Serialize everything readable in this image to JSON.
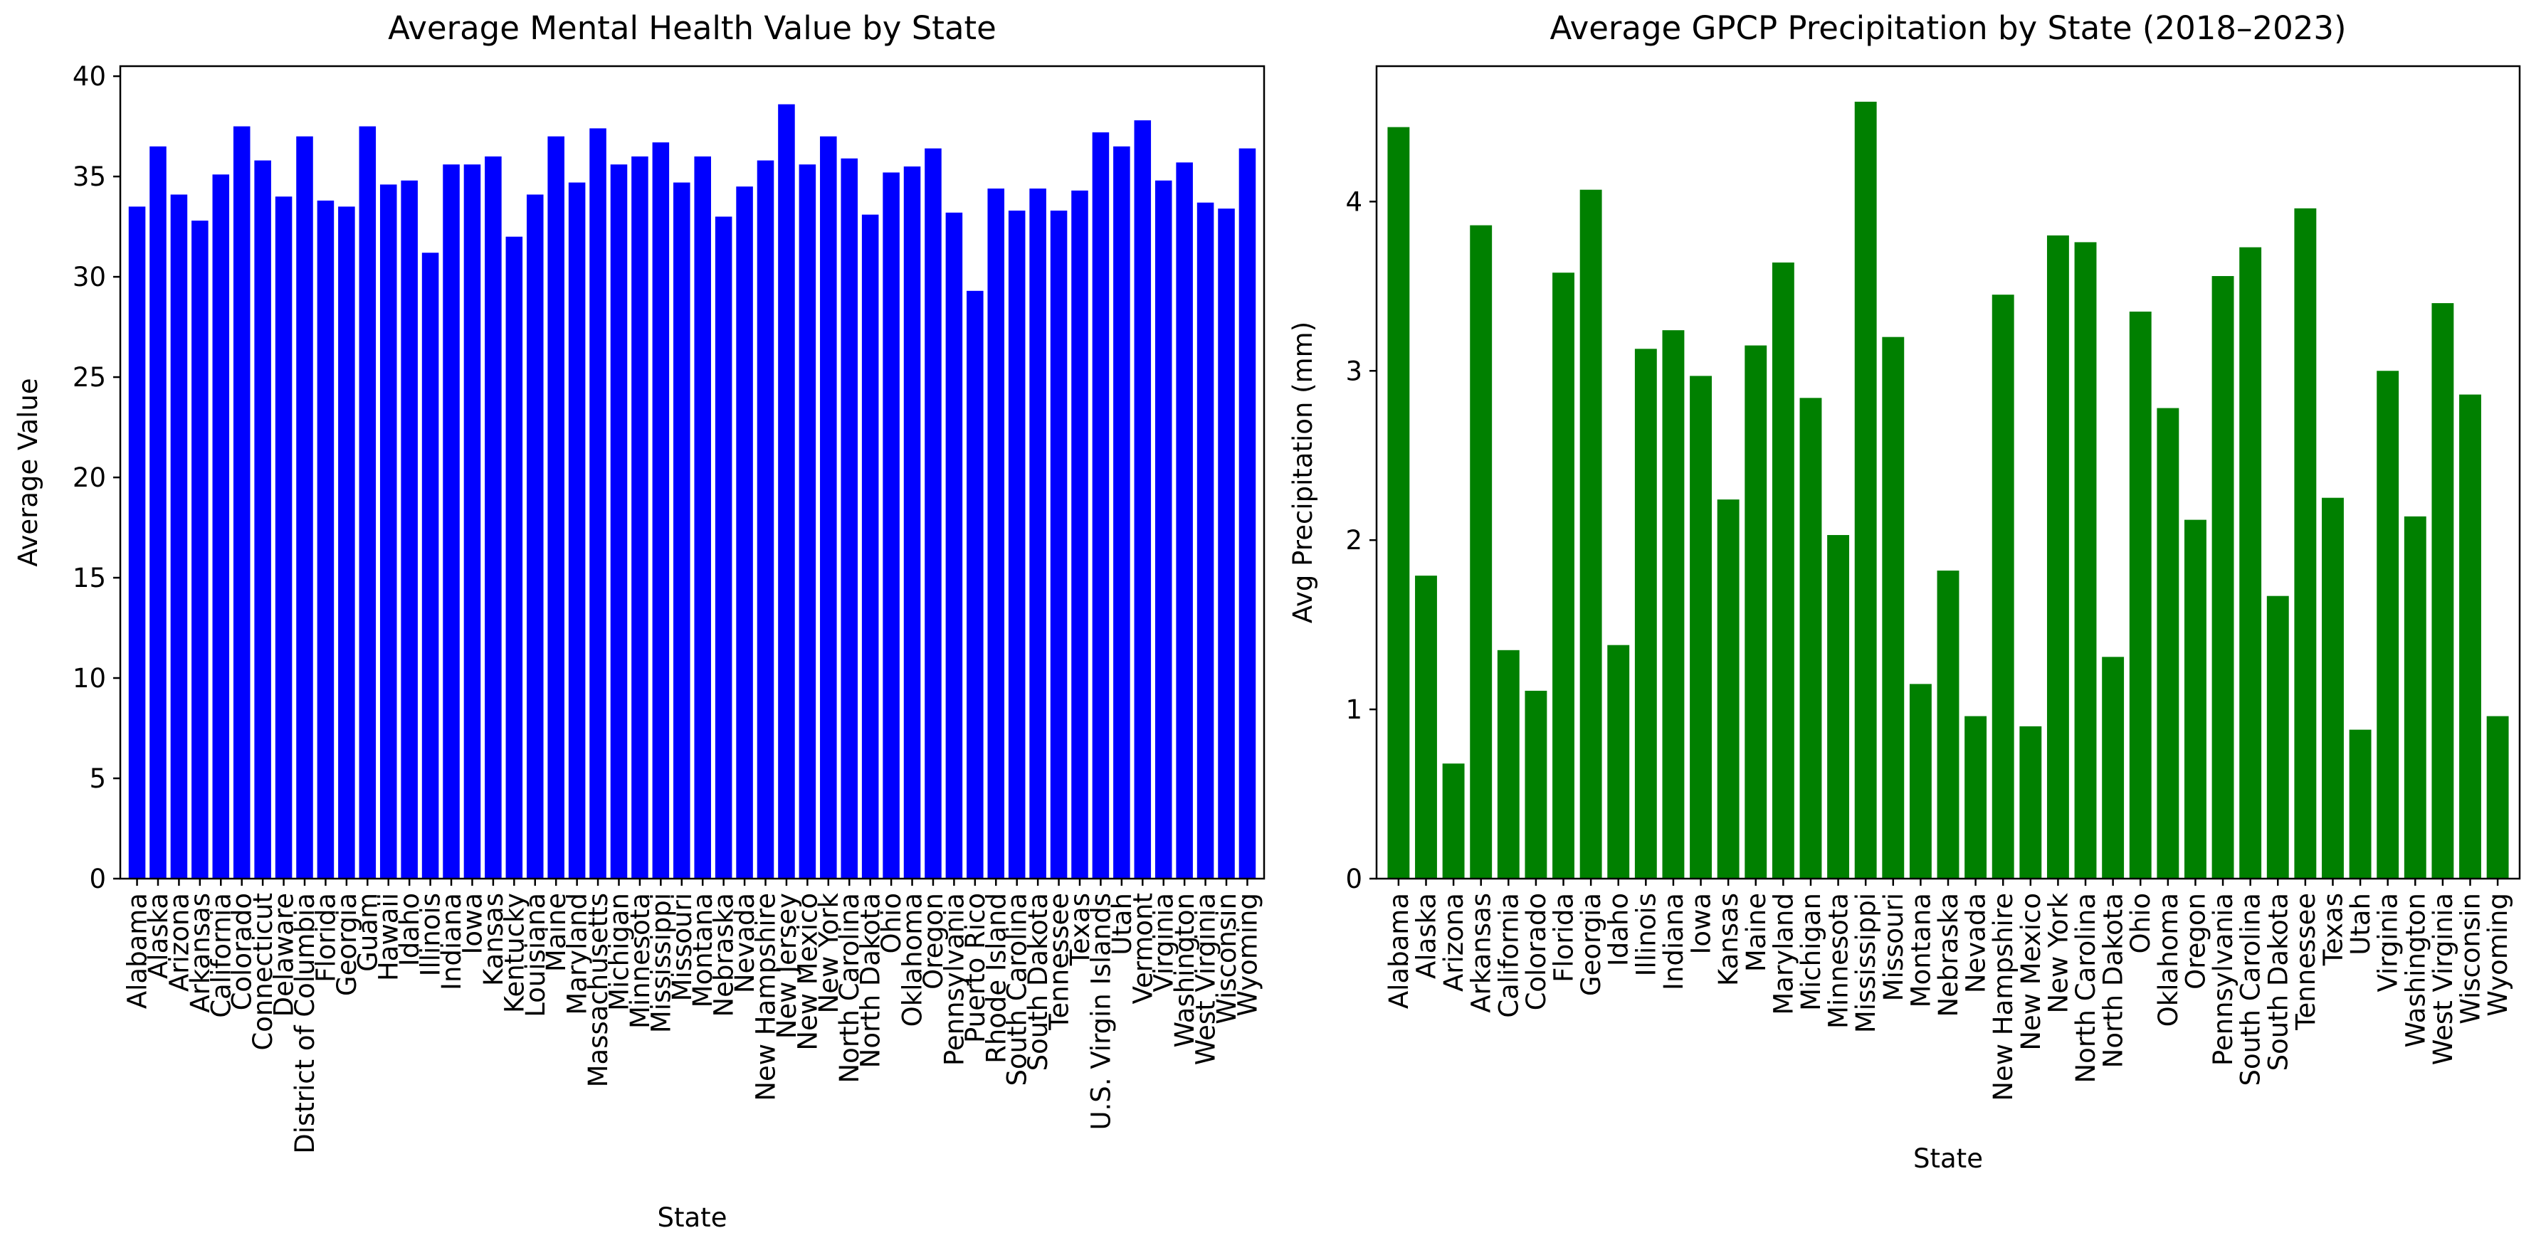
{
  "chart_data": [
    {
      "type": "bar",
      "title": "Average Mental Health Value by State",
      "xlabel": "State",
      "ylabel": "Average Value",
      "ylim": [
        0,
        40.5
      ],
      "yticks": [
        0,
        5,
        10,
        15,
        20,
        25,
        30,
        35,
        40
      ],
      "grid": false,
      "legend": "none",
      "color": "#0000ff",
      "categories": [
        "Alabama",
        "Alaska",
        "Arizona",
        "Arkansas",
        "California",
        "Colorado",
        "Connecticut",
        "Delaware",
        "District of Columbia",
        "Florida",
        "Georgia",
        "Guam",
        "Hawaii",
        "Idaho",
        "Illinois",
        "Indiana",
        "Iowa",
        "Kansas",
        "Kentucky",
        "Louisiana",
        "Maine",
        "Maryland",
        "Massachusetts",
        "Michigan",
        "Minnesota",
        "Mississippi",
        "Missouri",
        "Montana",
        "Nebraska",
        "Nevada",
        "New Hampshire",
        "New Jersey",
        "New Mexico",
        "New York",
        "North Carolina",
        "North Dakota",
        "Ohio",
        "Oklahoma",
        "Oregon",
        "Pennsylvania",
        "Puerto Rico",
        "Rhode Island",
        "South Carolina",
        "South Dakota",
        "Tennessee",
        "Texas",
        "U.S. Virgin Islands",
        "Utah",
        "Vermont",
        "Virginia",
        "Washington",
        "West Virginia",
        "Wisconsin",
        "Wyoming"
      ],
      "values": [
        33.5,
        36.5,
        34.1,
        32.8,
        35.1,
        37.5,
        35.8,
        34.0,
        37.0,
        33.8,
        33.5,
        37.5,
        34.6,
        34.8,
        31.2,
        35.6,
        35.6,
        36.0,
        32.0,
        34.1,
        37.0,
        34.7,
        37.4,
        35.6,
        36.0,
        36.7,
        34.7,
        36.0,
        33.0,
        34.5,
        35.8,
        38.6,
        35.6,
        37.0,
        35.9,
        33.1,
        35.2,
        35.5,
        36.4,
        33.2,
        29.3,
        34.4,
        33.3,
        34.4,
        33.3,
        34.3,
        37.2,
        36.5,
        37.8,
        34.8,
        35.7,
        33.7,
        33.4,
        36.4
      ]
    },
    {
      "type": "bar",
      "title": "Average GPCP Precipitation by State (2018–2023)",
      "xlabel": "State",
      "ylabel": "Avg Precipitation (mm)",
      "ylim": [
        0,
        4.8
      ],
      "yticks": [
        0,
        1,
        2,
        3,
        4
      ],
      "grid": false,
      "legend": "none",
      "color": "#008000",
      "categories": [
        "Alabama",
        "Alaska",
        "Arizona",
        "Arkansas",
        "California",
        "Colorado",
        "Florida",
        "Georgia",
        "Idaho",
        "Illinois",
        "Indiana",
        "Iowa",
        "Kansas",
        "Maine",
        "Maryland",
        "Michigan",
        "Minnesota",
        "Mississippi",
        "Missouri",
        "Montana",
        "Nebraska",
        "Nevada",
        "New Hampshire",
        "New Mexico",
        "New York",
        "North Carolina",
        "North Dakota",
        "Ohio",
        "Oklahoma",
        "Oregon",
        "Pennsylvania",
        "South Carolina",
        "South Dakota",
        "Tennessee",
        "Texas",
        "Utah",
        "Virginia",
        "Washington",
        "West Virginia",
        "Wisconsin",
        "Wyoming"
      ],
      "values": [
        4.44,
        1.79,
        0.68,
        3.86,
        1.35,
        1.11,
        3.58,
        4.07,
        1.38,
        3.13,
        3.24,
        2.97,
        2.24,
        3.15,
        3.64,
        2.84,
        2.03,
        4.59,
        3.2,
        1.15,
        1.82,
        0.96,
        3.45,
        0.9,
        3.8,
        3.76,
        1.31,
        3.35,
        2.78,
        2.12,
        3.56,
        3.73,
        1.67,
        3.96,
        2.25,
        0.88,
        3.0,
        2.14,
        3.4,
        2.86,
        0.96
      ]
    }
  ]
}
